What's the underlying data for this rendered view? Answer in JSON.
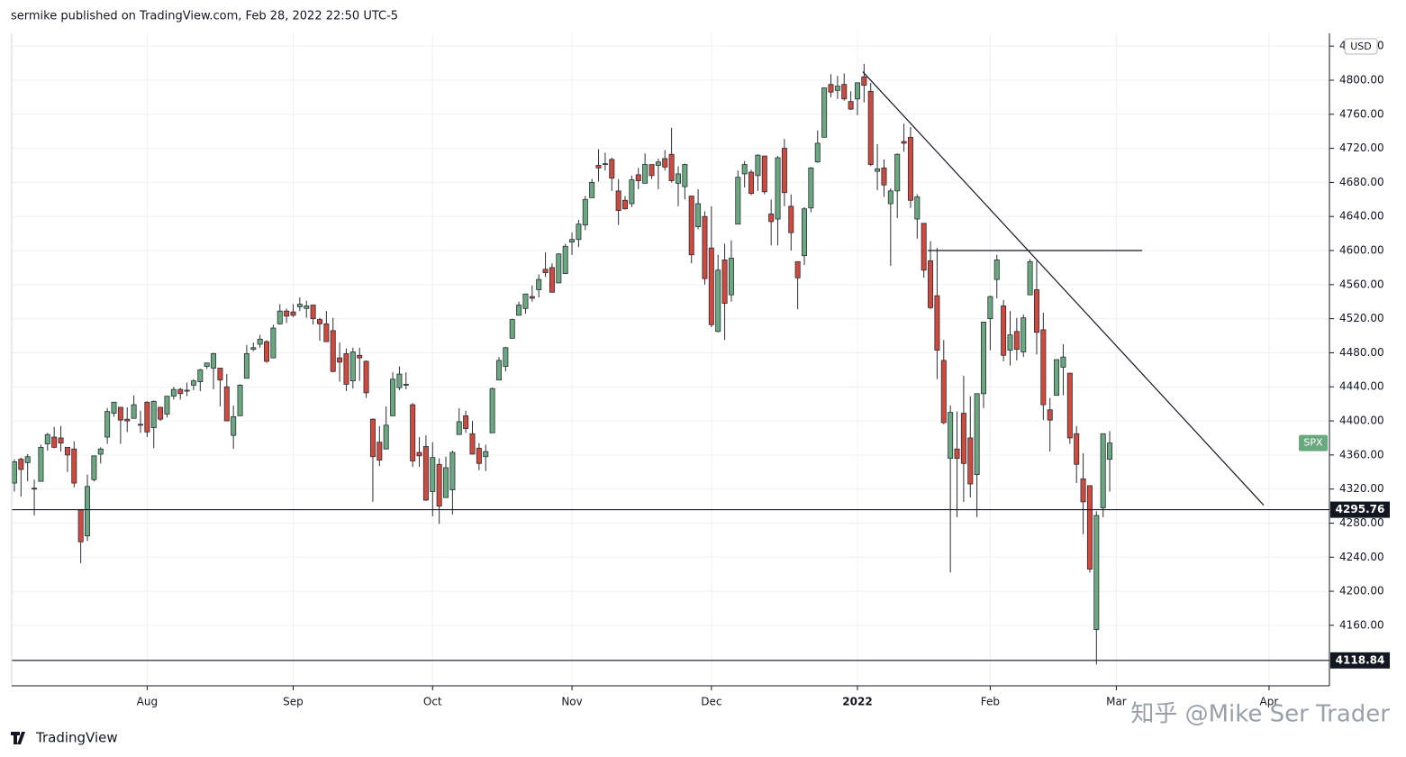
{
  "header": {
    "byline": "sermike published on TradingView.com, Feb 28, 2022 22:50 UTC-5"
  },
  "footer": {
    "brand": "TradingView",
    "watermark": "知乎 @Mike Ser Trader"
  },
  "chart_data": {
    "type": "candlestick",
    "symbol": "SPX",
    "currency": "USD",
    "up_color": "#6aa97f",
    "down_color": "#cf4a3c",
    "grid": true,
    "open": [
      4327,
      4355,
      4351,
      4321,
      4329,
      4373,
      4381,
      4380,
      4369,
      4367,
      4296,
      4265,
      4331,
      4361,
      4381,
      4409,
      4416,
      4402,
      4403,
      4396,
      4422,
      4392,
      4416,
      4408,
      4429,
      4437,
      4436,
      4442,
      4446,
      4464,
      4462,
      4462,
      4440,
      4383,
      4406,
      4450,
      4484,
      4490,
      4493,
      4474,
      4514,
      4529,
      4528,
      4534,
      4532,
      4536,
      4519,
      4514,
      4506,
      4474,
      4479,
      4447,
      4477,
      4470,
      4402,
      4375,
      4367,
      4406,
      4439,
      4443,
      4419,
      4363,
      4370,
      4317,
      4349,
      4310,
      4319,
      4384,
      4406,
      4385,
      4368,
      4358,
      4386,
      4448,
      4464,
      4497,
      4524,
      4532,
      4546,
      4554,
      4578,
      4580,
      4562,
      4573,
      4610,
      4613,
      4630,
      4662,
      4700,
      4702,
      4707,
      4670,
      4659,
      4655,
      4689,
      4679,
      4701,
      4700,
      4708,
      4713,
      4679,
      4675,
      4664,
      4628,
      4640,
      4603,
      4505,
      4589,
      4548,
      4631,
      4690,
      4692,
      4688,
      4711,
      4643,
      4637,
      4720,
      4652,
      4587,
      4594,
      4650,
      4704,
      4733,
      4795,
      4788,
      4795,
      4775,
      4778,
      4804,
      4787,
      4693,
      4697,
      4655,
      4670,
      4728,
      4733,
      4637,
      4632,
      4588,
      4547,
      4471,
      4356,
      4367,
      4409,
      4380,
      4337,
      4432,
      4520,
      4566,
      4535,
      4483,
      4505,
      4481,
      4548,
      4554,
      4507,
      4413,
      4430,
      4463,
      4456,
      4385,
      4332,
      4324,
      4155,
      4298,
      4355
    ],
    "high": [
      4355,
      4357,
      4361,
      4331,
      4372,
      4386,
      4393,
      4394,
      4369,
      4376,
      4296,
      4337,
      4359,
      4369,
      4415,
      4422,
      4416,
      4416,
      4430,
      4412,
      4423,
      4424,
      4416,
      4429,
      4440,
      4439,
      4445,
      4449,
      4461,
      4468,
      4480,
      4462,
      4455,
      4418,
      4443,
      4489,
      4492,
      4501,
      4495,
      4513,
      4537,
      4532,
      4537,
      4545,
      4541,
      4536,
      4521,
      4529,
      4521,
      4492,
      4485,
      4486,
      4486,
      4471,
      4403,
      4394,
      4417,
      4457,
      4464,
      4457,
      4421,
      4381,
      4383,
      4375,
      4356,
      4358,
      4365,
      4415,
      4412,
      4400,
      4374,
      4372,
      4439,
      4475,
      4487,
      4520,
      4540,
      4549,
      4559,
      4572,
      4598,
      4585,
      4597,
      4608,
      4621,
      4636,
      4664,
      4684,
      4719,
      4715,
      4709,
      4684,
      4664,
      4688,
      4697,
      4714,
      4701,
      4708,
      4718,
      4744,
      4699,
      4702,
      4664,
      4672,
      4646,
      4652,
      4595,
      4608,
      4612,
      4694,
      4705,
      4695,
      4713,
      4711,
      4660,
      4711,
      4731,
      4666,
      4587,
      4651,
      4698,
      4741,
      4791,
      4807,
      4805,
      4808,
      4787,
      4797,
      4819,
      4797,
      4725,
      4707,
      4673,
      4714,
      4749,
      4745,
      4666,
      4632,
      4611,
      4603,
      4495,
      4418,
      4411,
      4453,
      4429,
      4432,
      4516,
      4547,
      4595,
      4542,
      4529,
      4521,
      4525,
      4590,
      4588,
      4527,
      4427,
      4472,
      4490,
      4456,
      4394,
      4362,
      4324,
      4294,
      4385,
      4388
    ],
    "low": [
      4317,
      4311,
      4329,
      4289,
      4329,
      4365,
      4368,
      4364,
      4340,
      4322,
      4233,
      4259,
      4329,
      4350,
      4373,
      4405,
      4373,
      4387,
      4403,
      4386,
      4381,
      4368,
      4400,
      4404,
      4425,
      4425,
      4429,
      4436,
      4435,
      4461,
      4437,
      4417,
      4400,
      4367,
      4406,
      4450,
      4482,
      4486,
      4468,
      4474,
      4513,
      4515,
      4522,
      4529,
      4521,
      4513,
      4494,
      4493,
      4457,
      4446,
      4435,
      4438,
      4447,
      4427,
      4305,
      4347,
      4367,
      4406,
      4436,
      4437,
      4346,
      4346,
      4306,
      4288,
      4279,
      4310,
      4290,
      4384,
      4386,
      4361,
      4342,
      4341,
      4386,
      4448,
      4458,
      4497,
      4524,
      4526,
      4540,
      4545,
      4569,
      4551,
      4562,
      4573,
      4595,
      4604,
      4624,
      4662,
      4681,
      4694,
      4670,
      4630,
      4648,
      4651,
      4672,
      4679,
      4684,
      4672,
      4694,
      4680,
      4652,
      4660,
      4585,
      4625,
      4560,
      4510,
      4504,
      4495,
      4540,
      4631,
      4674,
      4665,
      4670,
      4666,
      4606,
      4606,
      4652,
      4600,
      4531,
      4583,
      4645,
      4703,
      4733,
      4780,
      4778,
      4776,
      4765,
      4759,
      4774,
      4699,
      4671,
      4663,
      4582,
      4638,
      4716,
      4650,
      4614,
      4568,
      4531,
      4449,
      4396,
      4222,
      4287,
      4305,
      4310,
      4287,
      4415,
      4483,
      4544,
      4470,
      4465,
      4471,
      4475,
      4548,
      4478,
      4401,
      4364,
      4430,
      4430,
      4373,
      4327,
      4267,
      4222,
      4114,
      4287,
      4317
    ],
    "close": [
      4352,
      4343,
      4358,
      4320,
      4369,
      4384,
      4369,
      4374,
      4360,
      4327,
      4258,
      4323,
      4359,
      4367,
      4411,
      4422,
      4401,
      4400,
      4419,
      4395,
      4387,
      4423,
      4402,
      4429,
      4437,
      4432,
      4436,
      4447,
      4460,
      4468,
      4479,
      4448,
      4400,
      4405,
      4442,
      4479,
      4486,
      4496,
      4470,
      4509,
      4529,
      4523,
      4524,
      4537,
      4535,
      4520,
      4514,
      4493,
      4458,
      4469,
      4443,
      4481,
      4474,
      4433,
      4358,
      4354,
      4395,
      4449,
      4455,
      4443,
      4353,
      4359,
      4307,
      4357,
      4300,
      4345,
      4363,
      4399,
      4391,
      4361,
      4350,
      4364,
      4438,
      4471,
      4486,
      4519,
      4536,
      4549,
      4544,
      4566,
      4574,
      4551,
      4596,
      4605,
      4613,
      4631,
      4660,
      4680,
      4697,
      4702,
      4685,
      4647,
      4649,
      4683,
      4682,
      4701,
      4688,
      4704,
      4698,
      4682,
      4690,
      4701,
      4595,
      4655,
      4567,
      4513,
      4577,
      4538,
      4591,
      4686,
      4701,
      4667,
      4712,
      4669,
      4634,
      4709,
      4668,
      4621,
      4568,
      4649,
      4697,
      4726,
      4791,
      4786,
      4793,
      4778,
      4766,
      4797,
      4794,
      4701,
      4696,
      4677,
      4670,
      4713,
      4726,
      4659,
      4663,
      4577,
      4533,
      4483,
      4398,
      4410,
      4356,
      4350,
      4326,
      4432,
      4516,
      4546,
      4589,
      4477,
      4501,
      4484,
      4521,
      4587,
      4504,
      4419,
      4401,
      4472,
      4475,
      4380,
      4349,
      4305,
      4226,
      4289,
      4385,
      4374
    ],
    "xlim": [
      -0.4,
      198.1
    ],
    "xticks": [
      {
        "value": 20,
        "label": "Aug"
      },
      {
        "value": 42,
        "label": "Sep"
      },
      {
        "value": 63,
        "label": "Oct"
      },
      {
        "value": 84,
        "label": "Nov"
      },
      {
        "value": 105,
        "label": "Dec"
      },
      2022,
      {
        "value": 147,
        "label": "Feb"
      },
      {
        "value": 166,
        "label": "Mar"
      },
      {
        "value": 189,
        "label": "Apr"
      }
    ],
    "xtick_positions": [
      127
    ],
    "ylim": [
      4089,
      4855
    ],
    "yticks": [
      {
        "value": 4160,
        "label": "4160.00"
      },
      {
        "value": 4200,
        "label": "4200.00"
      },
      {
        "value": 4240,
        "label": "4240.00"
      },
      {
        "value": 4280,
        "label": "4280.00"
      },
      {
        "value": 4320,
        "label": "4320.00"
      },
      {
        "value": 4360,
        "label": "4360.00"
      },
      {
        "value": 4400,
        "label": "4400.00"
      },
      {
        "value": 4440,
        "label": "4440.00"
      },
      {
        "value": 4480,
        "label": "4480.00"
      },
      {
        "value": 4520,
        "label": "4520.00"
      },
      {
        "value": 4560,
        "label": "4560.00"
      },
      {
        "value": 4600,
        "label": "4600.00"
      },
      {
        "value": 4640,
        "label": "4640.00"
      },
      {
        "value": 4680,
        "label": "4680.00"
      },
      {
        "value": 4720,
        "label": "4720.00"
      },
      {
        "value": 4760,
        "label": "4760.00"
      },
      {
        "value": 4800,
        "label": "4800.00"
      },
      {
        "value": 4840,
        "label": "4840.00"
      }
    ],
    "price_lines": [
      4295.76,
      4118.84
    ],
    "trendline": {
      "x": [
        127.8,
        188.2
      ],
      "y": [
        4810,
        4301
      ]
    },
    "resistance": {
      "x": [
        137.6,
        169.9
      ],
      "y": [
        4600,
        4600
      ]
    }
  }
}
